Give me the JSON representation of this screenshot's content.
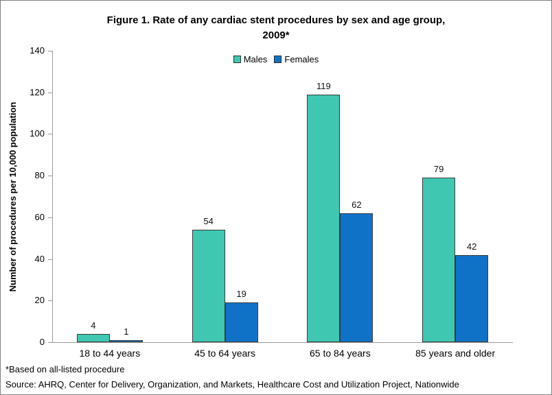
{
  "figure": {
    "title_line1": "Figure 1. Rate of any cardiac stent procedures by sex and age group,",
    "title_line2": "2009*",
    "footnote1": "*Based on all-listed procedure",
    "footnote2": "Source: AHRQ, Center for Delivery, Organization, and Markets, Healthcare Cost and Utilization Project, Nationwide"
  },
  "colors": {
    "males": "#3FC7B2",
    "females": "#1072C7",
    "bar_border": "#3a3a3a",
    "axis": "#9a9a9a",
    "text": "#000000"
  },
  "chart_data": {
    "type": "bar",
    "title": "Figure 1. Rate of any cardiac stent procedures by sex and age group, 2009*",
    "categories": [
      "18 to 44 years",
      "45 to 64 years",
      "65 to 84 years",
      "85 years and older"
    ],
    "series": [
      {
        "name": "Males",
        "values": [
          4,
          54,
          119,
          79
        ],
        "color": "#3FC7B2"
      },
      {
        "name": "Females",
        "values": [
          1,
          19,
          62,
          42
        ],
        "color": "#1072C7"
      }
    ],
    "xlabel": "",
    "ylabel": "Number of procedures per 10,000 population",
    "ylim": [
      0,
      140
    ],
    "ytick_step": 20,
    "yticks": [
      0,
      20,
      40,
      60,
      80,
      100,
      120,
      140
    ],
    "grid": false,
    "data_labels": true,
    "legend_position": "top-center"
  }
}
